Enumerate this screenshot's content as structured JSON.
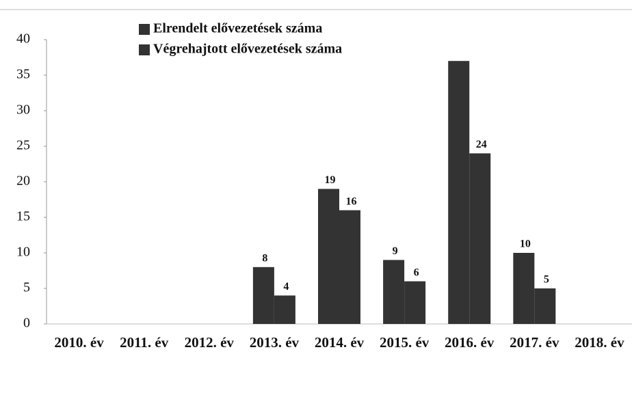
{
  "chart_data": {
    "type": "bar",
    "categories": [
      "2010. év",
      "2011. év",
      "2012. év",
      "2013. év",
      "2014. év",
      "2015. év",
      "2016. év",
      "2017. év",
      "2018. év"
    ],
    "series": [
      {
        "name": "Elrendelt elővezetések száma",
        "color": "#333333",
        "values": [
          null,
          null,
          null,
          8,
          19,
          9,
          37,
          10,
          null
        ],
        "value_labels": [
          null,
          null,
          null,
          "8",
          "19",
          "9",
          null,
          "10",
          null
        ]
      },
      {
        "name": "Végrehajtott elővezetések száma",
        "color": "#333333",
        "values": [
          null,
          null,
          null,
          4,
          16,
          6,
          24,
          5,
          null
        ],
        "value_labels": [
          null,
          null,
          null,
          "4",
          "16",
          "6",
          "24",
          "5",
          null
        ]
      }
    ],
    "ylim": [
      0,
      40
    ],
    "yticks": [
      0,
      5,
      10,
      15,
      20,
      25,
      30,
      35,
      40
    ],
    "grid": false
  }
}
